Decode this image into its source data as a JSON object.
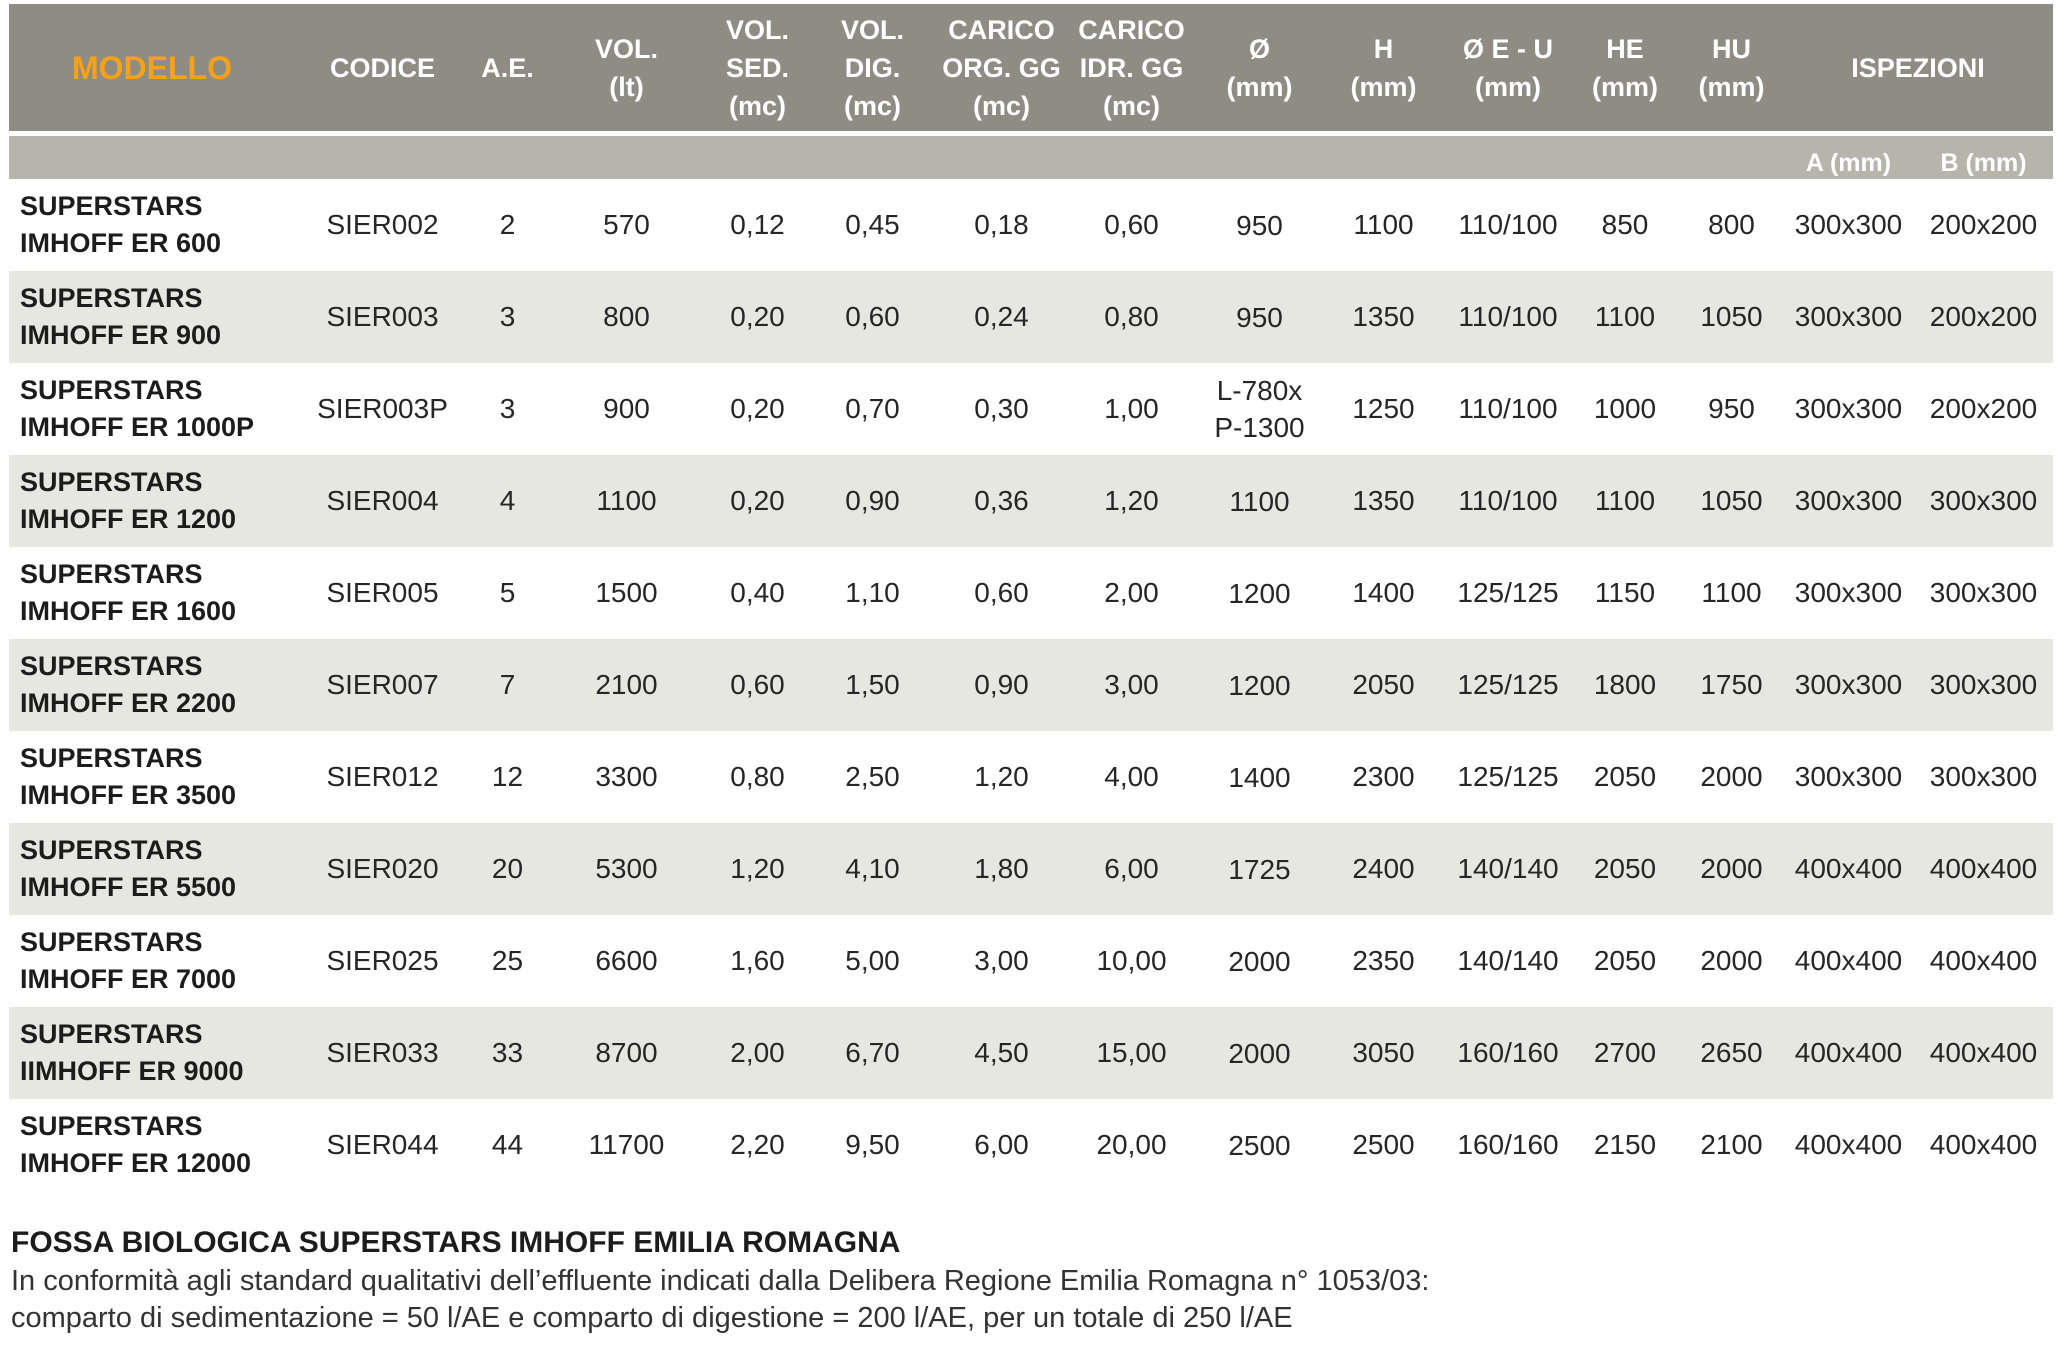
{
  "header": {
    "model": "MODELLO",
    "code": "CODICE",
    "ae": "A.E.",
    "vol_l1": "VOL.",
    "vol_l2": "(lt)",
    "volsed_l1": "VOL.",
    "volsed_l2": "SED.",
    "volsed_l3": "(mc)",
    "voldig_l1": "VOL.",
    "voldig_l2": "DIG.",
    "voldig_l3": "(mc)",
    "cargorg_l1": "CARICO",
    "cargorg_l2": "ORG. GG",
    "cargorg_l3": "(mc)",
    "caridr_l1": "CARICO",
    "caridr_l2": "IDR. GG",
    "caridr_l3": "(mc)",
    "dia_l1": "Ø",
    "dia_l2": "(mm)",
    "h_l1": "H",
    "h_l2": "(mm)",
    "deu_l1": "Ø E - U",
    "deu_l2": "(mm)",
    "he_l1": "HE",
    "he_l2": "(mm)",
    "hu_l1": "HU",
    "hu_l2": "(mm)",
    "inspections": "ISPEZIONI",
    "insp_a": "A (mm)",
    "insp_b": "B (mm)"
  },
  "rows": [
    {
      "model_l1": "SUPERSTARS",
      "model_l2": "IMHOFF ER 600",
      "code": "SIER002",
      "ae": "2",
      "vol": "570",
      "vol_sed": "0,12",
      "vol_dig": "0,45",
      "car_org": "0,18",
      "car_idr": "0,60",
      "dia_l1": "950",
      "dia_l2": "",
      "h": "1100",
      "deu": "110/100",
      "he": "850",
      "hu": "800",
      "insp_a": "300x300",
      "insp_b": "200x200"
    },
    {
      "model_l1": "SUPERSTARS",
      "model_l2": "IMHOFF ER 900",
      "code": "SIER003",
      "ae": "3",
      "vol": "800",
      "vol_sed": "0,20",
      "vol_dig": "0,60",
      "car_org": "0,24",
      "car_idr": "0,80",
      "dia_l1": "950",
      "dia_l2": "",
      "h": "1350",
      "deu": "110/100",
      "he": "1100",
      "hu": "1050",
      "insp_a": "300x300",
      "insp_b": "200x200"
    },
    {
      "model_l1": "SUPERSTARS",
      "model_l2": "IMHOFF ER 1000P",
      "code": "SIER003P",
      "ae": "3",
      "vol": "900",
      "vol_sed": "0,20",
      "vol_dig": "0,70",
      "car_org": "0,30",
      "car_idr": "1,00",
      "dia_l1": "L-780x",
      "dia_l2": "P-1300",
      "h": "1250",
      "deu": "110/100",
      "he": "1000",
      "hu": "950",
      "insp_a": "300x300",
      "insp_b": "200x200"
    },
    {
      "model_l1": "SUPERSTARS",
      "model_l2": "IMHOFF ER 1200",
      "code": "SIER004",
      "ae": "4",
      "vol": "1100",
      "vol_sed": "0,20",
      "vol_dig": "0,90",
      "car_org": "0,36",
      "car_idr": "1,20",
      "dia_l1": "1100",
      "dia_l2": "",
      "h": "1350",
      "deu": "110/100",
      "he": "1100",
      "hu": "1050",
      "insp_a": "300x300",
      "insp_b": "300x300"
    },
    {
      "model_l1": "SUPERSTARS",
      "model_l2": "IMHOFF ER 1600",
      "code": "SIER005",
      "ae": "5",
      "vol": "1500",
      "vol_sed": "0,40",
      "vol_dig": "1,10",
      "car_org": "0,60",
      "car_idr": "2,00",
      "dia_l1": "1200",
      "dia_l2": "",
      "h": "1400",
      "deu": "125/125",
      "he": "1150",
      "hu": "1100",
      "insp_a": "300x300",
      "insp_b": "300x300"
    },
    {
      "model_l1": "SUPERSTARS",
      "model_l2": "IMHOFF ER 2200",
      "code": "SIER007",
      "ae": "7",
      "vol": "2100",
      "vol_sed": "0,60",
      "vol_dig": "1,50",
      "car_org": "0,90",
      "car_idr": "3,00",
      "dia_l1": "1200",
      "dia_l2": "",
      "h": "2050",
      "deu": "125/125",
      "he": "1800",
      "hu": "1750",
      "insp_a": "300x300",
      "insp_b": "300x300"
    },
    {
      "model_l1": "SUPERSTARS",
      "model_l2": "IMHOFF ER 3500",
      "code": "SIER012",
      "ae": "12",
      "vol": "3300",
      "vol_sed": "0,80",
      "vol_dig": "2,50",
      "car_org": "1,20",
      "car_idr": "4,00",
      "dia_l1": "1400",
      "dia_l2": "",
      "h": "2300",
      "deu": "125/125",
      "he": "2050",
      "hu": "2000",
      "insp_a": "300x300",
      "insp_b": "300x300"
    },
    {
      "model_l1": "SUPERSTARS",
      "model_l2": "IMHOFF ER 5500",
      "code": "SIER020",
      "ae": "20",
      "vol": "5300",
      "vol_sed": "1,20",
      "vol_dig": "4,10",
      "car_org": "1,80",
      "car_idr": "6,00",
      "dia_l1": "1725",
      "dia_l2": "",
      "h": "2400",
      "deu": "140/140",
      "he": "2050",
      "hu": "2000",
      "insp_a": "400x400",
      "insp_b": "400x400"
    },
    {
      "model_l1": "SUPERSTARS",
      "model_l2": "IMHOFF ER 7000",
      "code": "SIER025",
      "ae": "25",
      "vol": "6600",
      "vol_sed": "1,60",
      "vol_dig": "5,00",
      "car_org": "3,00",
      "car_idr": "10,00",
      "dia_l1": "2000",
      "dia_l2": "",
      "h": "2350",
      "deu": "140/140",
      "he": "2050",
      "hu": "2000",
      "insp_a": "400x400",
      "insp_b": "400x400"
    },
    {
      "model_l1": "SUPERSTARS",
      "model_l2": "IIMHOFF ER 9000",
      "code": "SIER033",
      "ae": "33",
      "vol": "8700",
      "vol_sed": "2,00",
      "vol_dig": "6,70",
      "car_org": "4,50",
      "car_idr": "15,00",
      "dia_l1": "2000",
      "dia_l2": "",
      "h": "3050",
      "deu": "160/160",
      "he": "2700",
      "hu": "2650",
      "insp_a": "400x400",
      "insp_b": "400x400"
    },
    {
      "model_l1": "SUPERSTARS",
      "model_l2": "IMHOFF ER 12000",
      "code": "SIER044",
      "ae": "44",
      "vol": "11700",
      "vol_sed": "2,20",
      "vol_dig": "9,50",
      "car_org": "6,00",
      "car_idr": "20,00",
      "dia_l1": "2500",
      "dia_l2": "",
      "h": "2500",
      "deu": "160/160",
      "he": "2150",
      "hu": "2100",
      "insp_a": "400x400",
      "insp_b": "400x400"
    }
  ],
  "footer": {
    "title": "FOSSA BIOLOGICA SUPERSTARS IMHOFF EMILIA ROMAGNA",
    "line1": "In conformità agli standard qualitativi dell’effluente indicati dalla Delibera Regione Emilia Romagna n° 1053/03:",
    "line2": "comparto di sedimentazione = 50 l/AE e comparto di digestione = 200 l/AE, per un totale di 250 l/AE"
  }
}
